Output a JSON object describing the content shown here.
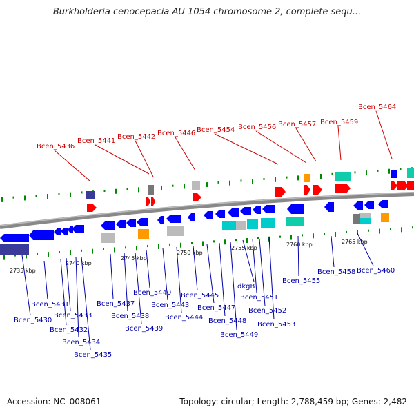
{
  "title": "Burkholderia cenocepacia AU 1054 chromosome 2, complete sequ...",
  "footer": {
    "accession": "Accession: NC_008061",
    "summary": "Topology: circular; Length: 2,788,459 bp; Genes: 2,482"
  },
  "colors": {
    "forward": "#ff0000",
    "reverse": "#0000ff",
    "other": "#3a3a9a",
    "backbone": "#888888",
    "ticks": "#008800",
    "label_red": "#cc0000",
    "label_blue": "#0000aa"
  },
  "ticks": [
    "2735 kbp",
    "2740 kbp",
    "2745 kbp",
    "2750 kbp",
    "2755 kbp",
    "2760 kbp",
    "2765 kbp"
  ],
  "upper_labels": [
    "Bcen_5436",
    "Bcen_5441",
    "Bcen_5442",
    "Bcen_5446",
    "Bcen_5454",
    "Bcen_5456",
    "Bcen_5457",
    "Bcen_5459",
    "Bcen_5464"
  ],
  "lower_labels": [
    "Bcen_5430",
    "Bcen_5431",
    "Bcen_5432",
    "Bcen_5433",
    "Bcen_5434",
    "Bcen_5435",
    "Bcen_5437",
    "Bcen_5438",
    "Bcen_5439",
    "Bcen_5440",
    "Bcen_5443",
    "Bcen_5444",
    "Bcen_5445",
    "Bcen_5447",
    "Bcen_5448",
    "Bcen_5449",
    "dkgB",
    "Bcen_5451",
    "Bcen_5452",
    "Bcen_5453",
    "Bcen_5455",
    "Bcen_5458",
    "Bcen_5460"
  ]
}
